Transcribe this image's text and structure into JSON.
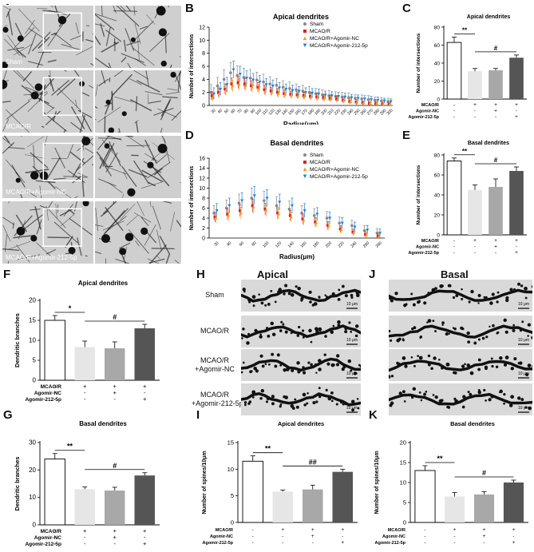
{
  "panel_letters": [
    "A",
    "B",
    "C",
    "D",
    "E",
    "F",
    "G",
    "H",
    "I",
    "J",
    "K"
  ],
  "panel_a": {
    "labels": [
      "Sham",
      "MCAO/R",
      "MCAO/R+Agomir-NC",
      "MCAO/R+Agomir-212-5p"
    ]
  },
  "panel_h": {
    "title": "Apical",
    "labels": [
      "Sham",
      "MCAO/R",
      "MCAO/R\n+Agomir-NC",
      "MCAO/R\n+Agomir-212-5p"
    ],
    "scale": "10 μm"
  },
  "panel_j": {
    "title": "Basal",
    "scale": "10 μm"
  },
  "group_rows": {
    "row_labels": [
      "MCAO/R",
      "Agomir-NC",
      "Agomir-212-5p"
    ],
    "signs": [
      [
        "-",
        "+",
        "+",
        "+"
      ],
      [
        "-",
        "-",
        "+",
        "-"
      ],
      [
        "-",
        "-",
        "-",
        "+"
      ]
    ]
  },
  "colors": {
    "sham": "#888888",
    "mcao": "#e02020",
    "nc": "#f0a020",
    "agomir": "#2080d0",
    "bar_sham": "#ffffff",
    "bar_mcao": "#e6e6e6",
    "bar_nc": "#a8a8a8",
    "bar_agomir": "#555555"
  },
  "chart_data": [
    {
      "id": "B",
      "type": "line",
      "title": "Apical dendrites",
      "xlabel": "Radius(μm)",
      "ylabel": "Number of intersections",
      "ylim": [
        0,
        12
      ],
      "yticks": [
        0,
        2,
        4,
        6,
        8,
        10,
        12
      ],
      "x": [
        "30",
        "40",
        "50",
        "60",
        "70",
        "80",
        "90",
        "100",
        "110",
        "120",
        "130",
        "140",
        "150",
        "160",
        "170",
        "180",
        "190",
        "200",
        "210",
        "220",
        "230",
        "240",
        "250",
        "260",
        "270",
        "280",
        "290",
        "300"
      ],
      "series": [
        {
          "name": "Sham",
          "marker": "circle",
          "values": [
            2,
            3,
            4,
            5,
            4.6,
            4.3,
            4.2,
            3.9,
            3.6,
            3.3,
            3.1,
            2.8,
            2.6,
            2.4,
            2.2,
            2,
            1.8,
            1.6,
            1.5,
            1.4,
            1.3,
            1.2,
            1.1,
            1,
            0.9,
            0.8,
            0.7,
            0.6
          ],
          "errors": [
            1.2,
            1.3,
            1.5,
            1.6,
            1.5,
            1.4,
            1.3,
            1.2,
            1.2,
            1.1,
            1,
            1,
            1,
            0.9,
            0.9,
            0.9,
            0.8,
            0.8,
            0.8,
            0.7,
            0.7,
            0.7,
            0.6,
            0.6,
            0.6,
            0.5,
            0.5,
            0.5
          ]
        },
        {
          "name": "MCAO/R",
          "marker": "square",
          "values": [
            1.5,
            2,
            2.5,
            3.3,
            3.5,
            3.3,
            3,
            2.8,
            2.4,
            2.2,
            2,
            1.8,
            1.7,
            1.6,
            1.5,
            1.4,
            1.3,
            1.2,
            1.1,
            1,
            0.8,
            0.6,
            0.5,
            0.4,
            0.3,
            0.3,
            0.2,
            0.2
          ],
          "errors": [
            0.6,
            0.7,
            0.8,
            0.9,
            0.9,
            0.8,
            0.8,
            0.7,
            0.7,
            0.6,
            0.6,
            0.6,
            0.5,
            0.5,
            0.5,
            0.5,
            0.5,
            0.5,
            0.4,
            0.4,
            0.4,
            0.4,
            0.4,
            0.3,
            0.3,
            0.3,
            0.3,
            0.3
          ]
        },
        {
          "name": "MCAO/R+Agomir-NC",
          "marker": "triangle-up",
          "values": [
            1.2,
            1.8,
            2.3,
            3,
            3.2,
            3,
            2.8,
            2.5,
            2.2,
            2,
            1.8,
            1.7,
            1.6,
            1.5,
            1.4,
            1.3,
            1.2,
            1.1,
            1,
            0.9,
            0.8,
            0.6,
            0.5,
            0.4,
            0.3,
            0.3,
            0.2,
            0.2
          ],
          "errors": [
            0.6,
            0.7,
            0.8,
            0.9,
            0.9,
            0.8,
            0.8,
            0.7,
            0.7,
            0.6,
            0.6,
            0.6,
            0.5,
            0.5,
            0.5,
            0.5,
            0.5,
            0.5,
            0.4,
            0.4,
            0.4,
            0.4,
            0.4,
            0.3,
            0.3,
            0.3,
            0.3,
            0.3
          ]
        },
        {
          "name": "MCAO/R+Agomir-212-5p",
          "marker": "triangle-down",
          "values": [
            1.8,
            2.5,
            3.2,
            5.5,
            4.8,
            4.2,
            3.9,
            3.6,
            3.2,
            3,
            2.7,
            2.5,
            2.3,
            2.2,
            2,
            1.9,
            1.8,
            1.6,
            1.5,
            1.4,
            1.3,
            1.2,
            1.1,
            1,
            0.9,
            0.8,
            0.7,
            0.6
          ],
          "errors": [
            0.9,
            1,
            1.1,
            1.3,
            1.2,
            1.1,
            1,
            1,
            0.9,
            0.9,
            0.8,
            0.8,
            0.8,
            0.7,
            0.7,
            0.7,
            0.7,
            0.6,
            0.6,
            0.6,
            0.6,
            0.5,
            0.5,
            0.5,
            0.5,
            0.5,
            0.4,
            0.4
          ]
        }
      ],
      "legend": "top-right"
    },
    {
      "id": "D",
      "type": "line",
      "title": "Basal dendrites",
      "xlabel": "Radius(μm)",
      "ylabel": "Number of intersections",
      "ylim": [
        0,
        16
      ],
      "yticks": [
        0,
        2,
        4,
        6,
        8,
        10,
        12,
        14,
        16
      ],
      "x": [
        "30",
        "40",
        "60",
        "80",
        "100",
        "120",
        "140",
        "160",
        "180",
        "200",
        "220",
        "240",
        "260",
        "280"
      ],
      "series": [
        {
          "name": "Sham",
          "marker": "circle",
          "values": [
            5,
            6,
            7,
            8,
            7.5,
            6.5,
            5.8,
            5,
            4.5,
            4,
            3,
            2.5,
            1.5,
            1
          ],
          "errors": [
            1.5,
            1.6,
            1.8,
            2,
            1.9,
            1.8,
            1.6,
            1.5,
            1.4,
            1.3,
            1.2,
            1.1,
            1,
            0.9
          ]
        },
        {
          "name": "MCAO/R",
          "marker": "square",
          "values": [
            4.2,
            4.8,
            5.5,
            6.5,
            5.8,
            5,
            4.5,
            3.8,
            3.2,
            2.5,
            1.8,
            1.2,
            0.7,
            0.4
          ],
          "errors": [
            1,
            1.1,
            1.2,
            1.3,
            1.2,
            1.1,
            1,
            1,
            0.9,
            0.8,
            0.7,
            0.6,
            0.5,
            0.4
          ]
        },
        {
          "name": "MCAO/R+Agomir-NC",
          "marker": "triangle-up",
          "values": [
            4,
            4.5,
            5,
            6.2,
            5.5,
            4.8,
            4.2,
            3.6,
            3,
            2.4,
            1.7,
            1.1,
            0.6,
            0.3
          ],
          "errors": [
            1,
            1.1,
            1.2,
            1.3,
            1.2,
            1.1,
            1,
            1,
            0.9,
            0.8,
            0.7,
            0.6,
            0.5,
            0.4
          ]
        },
        {
          "name": "MCAO/R+Agomir-212-5p",
          "marker": "triangle-down",
          "values": [
            5.5,
            6.5,
            7.5,
            8.5,
            8,
            7.2,
            6.5,
            5.5,
            4.8,
            4,
            3,
            2.2,
            1.6,
            1
          ],
          "errors": [
            1.4,
            1.5,
            1.6,
            1.8,
            1.7,
            1.6,
            1.5,
            1.4,
            1.3,
            1.2,
            1.1,
            1,
            0.9,
            0.8
          ]
        }
      ],
      "legend": "top-right"
    },
    {
      "id": "C",
      "type": "bar",
      "title": "Apical dendrites",
      "ylabel": "Number of intersections",
      "ylim": [
        0,
        80
      ],
      "yticks": [
        0,
        20,
        40,
        60,
        80
      ],
      "categories": [
        "Sham",
        "MCAO/R",
        "MCAO/R+Agomir-NC",
        "MCAO/R+Agomir-212-5p"
      ],
      "values": [
        63,
        31,
        32,
        46
      ],
      "errors": [
        6,
        3,
        2,
        3
      ],
      "annotations": [
        {
          "text": "**",
          "from": 0,
          "to": 1
        },
        {
          "text": "#",
          "from": 1,
          "to": 3
        }
      ]
    },
    {
      "id": "E",
      "type": "bar",
      "title": "Basal dendrites",
      "ylabel": "Number of intersections",
      "ylim": [
        0,
        80
      ],
      "yticks": [
        0,
        20,
        40,
        60,
        80
      ],
      "categories": [
        "Sham",
        "MCAO/R",
        "MCAO/R+Agomir-NC",
        "MCAO/R+Agomir-212-5p"
      ],
      "values": [
        74,
        45,
        48,
        64
      ],
      "errors": [
        3,
        5,
        8,
        4
      ],
      "annotations": [
        {
          "text": "**",
          "from": 0,
          "to": 1
        },
        {
          "text": "#",
          "from": 1,
          "to": 3
        }
      ]
    },
    {
      "id": "F",
      "type": "bar",
      "title": "Apical dendrites",
      "ylabel": "Dendritic branches",
      "ylim": [
        0,
        20
      ],
      "yticks": [
        0,
        5,
        10,
        15,
        20
      ],
      "categories": [
        "Sham",
        "MCAO/R",
        "MCAO/R+Agomir-NC",
        "MCAO/R+Agomir-212-5p"
      ],
      "values": [
        15,
        8.3,
        8,
        13
      ],
      "errors": [
        1.2,
        1.5,
        1.6,
        1
      ],
      "annotations": [
        {
          "text": "*",
          "from": 0,
          "to": 1
        },
        {
          "text": "#",
          "from": 1,
          "to": 3
        }
      ]
    },
    {
      "id": "G",
      "type": "bar",
      "title": "Basal dendrites",
      "ylabel": "Dendritic branches",
      "ylim": [
        0,
        30
      ],
      "yticks": [
        0,
        10,
        20,
        30
      ],
      "categories": [
        "Sham",
        "MCAO/R",
        "MCAO/R+Agomir-NC",
        "MCAO/R+Agomir-212-5p"
      ],
      "values": [
        24,
        13,
        12.5,
        18
      ],
      "errors": [
        2,
        0.8,
        1.2,
        1
      ],
      "annotations": [
        {
          "text": "**",
          "from": 0,
          "to": 1
        },
        {
          "text": "#",
          "from": 1,
          "to": 3
        }
      ]
    },
    {
      "id": "I",
      "type": "bar",
      "title": "Apical dendrites",
      "ylabel": "Number of spines/10μm",
      "ylim": [
        0,
        15
      ],
      "yticks": [
        0,
        5,
        10,
        15
      ],
      "categories": [
        "Sham",
        "MCAO/R",
        "MCAO/R+Agomir-NC",
        "MCAO/R+Agomir-212-5p"
      ],
      "values": [
        11.5,
        5.8,
        6.2,
        9.5
      ],
      "errors": [
        1,
        0.3,
        0.8,
        0.5
      ],
      "annotations": [
        {
          "text": "**",
          "from": 0,
          "to": 1
        },
        {
          "text": "##",
          "from": 1,
          "to": 3
        }
      ]
    },
    {
      "id": "K",
      "type": "bar",
      "title": "Basal dendrites",
      "ylabel": "Number of spines/10μm",
      "ylim": [
        0,
        20
      ],
      "yticks": [
        0,
        5,
        10,
        15,
        20
      ],
      "categories": [
        "Sham",
        "MCAO/R",
        "MCAO/R+Agomir-NC",
        "MCAO/R+Agomir-212-5p"
      ],
      "values": [
        13,
        6.5,
        7,
        10
      ],
      "errors": [
        1.2,
        1,
        0.7,
        0.6
      ],
      "annotations": [
        {
          "text": "**",
          "from": 0,
          "to": 1
        },
        {
          "text": "#",
          "from": 1,
          "to": 3
        }
      ]
    }
  ]
}
